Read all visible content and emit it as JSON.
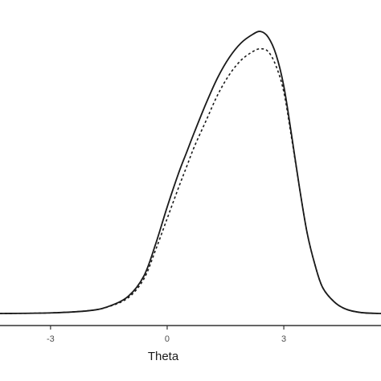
{
  "chart_data": {
    "type": "line",
    "title": "",
    "xlabel": "Theta",
    "ylabel": "",
    "xlim": [
      -4.3,
      5.5
    ],
    "ylim": [
      0,
      1.0
    ],
    "grid": false,
    "x_ticks": [
      {
        "value": -3,
        "label": "-3"
      },
      {
        "value": 0,
        "label": "0"
      },
      {
        "value": 3,
        "label": "3"
      }
    ],
    "series": [
      {
        "style": "solid",
        "x": [
          -4.3,
          -3.0,
          -2.0,
          -1.5,
          -1.0,
          -0.6,
          -0.3,
          0.0,
          0.3,
          0.5,
          0.7,
          1.0,
          1.3,
          1.6,
          1.9,
          2.2,
          2.4,
          2.6,
          2.8,
          3.0,
          3.2,
          3.4,
          3.6,
          3.8,
          4.0,
          4.3,
          4.6,
          5.0,
          5.5
        ],
        "y": [
          0.0,
          0.002,
          0.01,
          0.025,
          0.06,
          0.13,
          0.24,
          0.37,
          0.49,
          0.56,
          0.63,
          0.73,
          0.82,
          0.89,
          0.94,
          0.97,
          0.98,
          0.96,
          0.9,
          0.79,
          0.62,
          0.44,
          0.28,
          0.17,
          0.09,
          0.04,
          0.015,
          0.003,
          0.0
        ]
      },
      {
        "style": "dashed",
        "x": [
          -4.3,
          -3.0,
          -2.0,
          -1.5,
          -1.0,
          -0.6,
          -0.3,
          0.0,
          0.3,
          0.5,
          0.7,
          1.0,
          1.3,
          1.6,
          1.9,
          2.2,
          2.4,
          2.6,
          2.8,
          3.0,
          3.2,
          3.4,
          3.6,
          3.8,
          4.0,
          4.3,
          4.6,
          5.0,
          5.5
        ],
        "y": [
          0.0,
          0.002,
          0.01,
          0.024,
          0.055,
          0.12,
          0.22,
          0.33,
          0.44,
          0.51,
          0.58,
          0.67,
          0.76,
          0.83,
          0.88,
          0.91,
          0.92,
          0.91,
          0.86,
          0.77,
          0.61,
          0.44,
          0.28,
          0.17,
          0.09,
          0.04,
          0.015,
          0.003,
          0.0
        ]
      }
    ]
  }
}
